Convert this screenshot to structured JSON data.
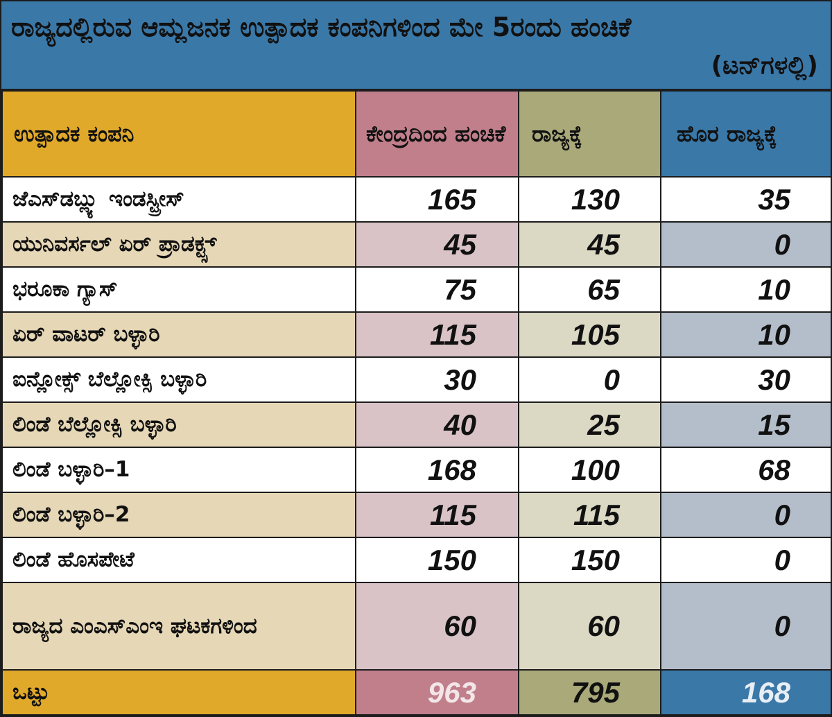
{
  "title": "ರಾಜ್ಯದಲ್ಲಿರುವ ಆಮ್ಲಜನಕ ಉತ್ಪಾದಕ ಕಂಪನಿಗಳಿಂದ ಮೇ 5ರಂದು ಹಂಚಿಕೆ",
  "unit": "(ಟನ್‌ಗಳಲ್ಲಿ)",
  "colors": {
    "title_band": "#3a78a8",
    "header_company": "#e0a92a",
    "header_centre": "#c07f8b",
    "header_state": "#aaa979",
    "header_outside": "#3a78a8"
  },
  "chart_data": {
    "type": "table",
    "columns": [
      "ಉತ್ಪಾದಕ ಕಂಪನಿ",
      "ಕೇಂದ್ರದಿಂದ ಹಂಚಿಕೆ",
      "ರಾಜ್ಯಕ್ಕೆ",
      "ಹೊರ ರಾಜ್ಯಕ್ಕೆ"
    ],
    "rows": [
      {
        "company": "ಜೆಎಸ್‌ಡಬ್ಲ್ಯು ಇಂಡಸ್ಟ್ರೀಸ್",
        "centre": "165",
        "state": "130",
        "outside": "35"
      },
      {
        "company": "ಯುನಿವರ್ಸಲ್ ಏರ್ ಪ್ರಾಡಕ್ಟ್ಸ್",
        "centre": "45",
        "state": "45",
        "outside": "0"
      },
      {
        "company": "ಭರೂಕಾ ಗ್ಯಾಸ್",
        "centre": "75",
        "state": "65",
        "outside": "10"
      },
      {
        "company": "ಏರ್ ವಾಟರ್ ಬಳ್ಳಾರಿ",
        "centre": "115",
        "state": "105",
        "outside": "10"
      },
      {
        "company": "ಐನ್ಲೋಕ್ಸ್ ಬೆಲ್ಲೋಕ್ಸಿ ಬಳ್ಳಾರಿ",
        "centre": "30",
        "state": "0",
        "outside": "30"
      },
      {
        "company": "ಲಿಂಡೆ ಬೆಲ್ಲೋಕ್ಸಿ ಬಳ್ಳಾರಿ",
        "centre": "40",
        "state": "25",
        "outside": "15"
      },
      {
        "company": "ಲಿಂಡೆ ಬಳ್ಳಾರಿ–1",
        "centre": "168",
        "state": "100",
        "outside": "68"
      },
      {
        "company": "ಲಿಂಡೆ ಬಳ್ಳಾರಿ–2",
        "centre": "115",
        "state": "115",
        "outside": "0"
      },
      {
        "company": "ಲಿಂಡೆ ಹೊಸಪೇಟೆ",
        "centre": "150",
        "state": "150",
        "outside": "0"
      },
      {
        "company": "ರಾಜ್ಯದ ಎಂಎಸ್‌ಎಂಇ ಘಟಕಗಳಿಂದ",
        "centre": "60",
        "state": "60",
        "outside": "0"
      }
    ],
    "total": {
      "company": "ಒಟ್ಟು",
      "centre": "963",
      "state": "795",
      "outside": "168"
    }
  }
}
